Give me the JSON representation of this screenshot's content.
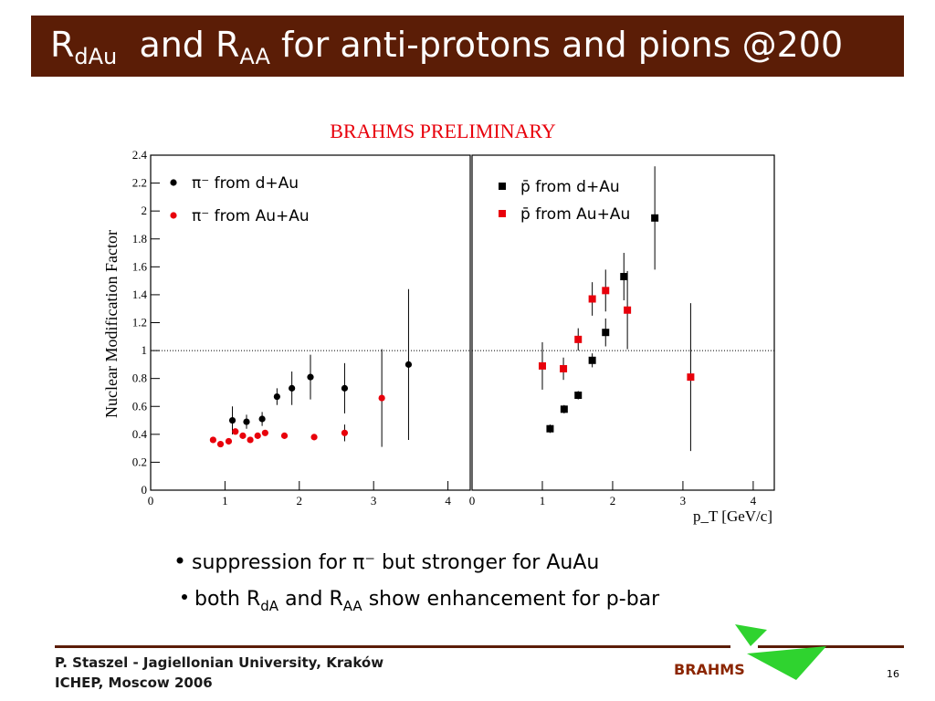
{
  "header": {
    "title": [
      "R",
      "dAu",
      "  and R",
      "AA",
      " for anti-protons and pions @200"
    ]
  },
  "annotation": "BRAHMS PRELIMINARY",
  "chart_data": [
    {
      "type": "scatter",
      "ylabel": "Nuclear Modification Factor",
      "xlim": [
        0,
        4.3
      ],
      "ylim": [
        0,
        2.4
      ],
      "xticks": [
        0,
        1,
        2,
        3,
        4
      ],
      "yticks": [
        0,
        0.2,
        0.4,
        0.6,
        0.8,
        1,
        1.2,
        1.4,
        1.6,
        1.8,
        2,
        2.2,
        2.4
      ],
      "hline": 1,
      "grid": false,
      "series": [
        {
          "name": "π⁻ from d+Au",
          "color": "#000000",
          "marker": "circle",
          "x": [
            1.1,
            1.29,
            1.5,
            1.7,
            1.9,
            2.15,
            2.61,
            3.47
          ],
          "values": [
            0.5,
            0.49,
            0.51,
            0.67,
            0.73,
            0.81,
            0.73,
            0.9
          ],
          "errors": [
            0.1,
            0.05,
            0.05,
            0.06,
            0.12,
            0.16,
            0.18,
            0.54
          ]
        },
        {
          "name": "π⁻ from Au+Au",
          "color": "#e8000b",
          "marker": "circle",
          "x": [
            0.84,
            0.94,
            1.05,
            1.14,
            1.24,
            1.34,
            1.44,
            1.54,
            1.8,
            2.2,
            2.61,
            3.11
          ],
          "values": [
            0.36,
            0.33,
            0.35,
            0.42,
            0.39,
            0.36,
            0.39,
            0.41,
            0.39,
            0.38,
            0.41,
            0.66
          ],
          "errors": [
            0.02,
            0.02,
            0.02,
            0.02,
            0.02,
            0.02,
            0.02,
            0.02,
            0.02,
            0.02,
            0.06,
            0.35
          ]
        }
      ]
    },
    {
      "type": "scatter",
      "xlabel": "p_T [GeV/c]",
      "xlim": [
        0,
        4.3
      ],
      "ylim": [
        0,
        2.4
      ],
      "xticks": [
        0,
        1,
        2,
        3,
        4
      ],
      "hline": 1,
      "grid": false,
      "series": [
        {
          "name": "p̄ from d+Au",
          "color": "#000000",
          "marker": "square",
          "x": [
            1.11,
            1.31,
            1.51,
            1.71,
            1.9,
            2.16,
            2.6
          ],
          "values": [
            0.44,
            0.58,
            0.68,
            0.93,
            1.13,
            1.53,
            1.95
          ],
          "errors": [
            0.03,
            0.03,
            0.03,
            0.05,
            0.1,
            0.17,
            0.37
          ]
        },
        {
          "name": "p̄ from Au+Au",
          "color": "#e8000b",
          "marker": "square",
          "x": [
            1.0,
            1.3,
            1.51,
            1.71,
            1.9,
            2.21,
            3.11
          ],
          "values": [
            0.89,
            0.87,
            1.08,
            1.37,
            1.43,
            1.29,
            0.81
          ],
          "errors": [
            0.17,
            0.08,
            0.08,
            0.12,
            0.15,
            0.28,
            0.53
          ]
        }
      ]
    }
  ],
  "bullets": [
    "suppression for π⁻ but stronger for AuAu",
    [
      "both R",
      "dA",
      " and R",
      "AA",
      " show enhancement for p-bar"
    ]
  ],
  "footer": {
    "author": "P. Staszel - Jagiellonian University, Kraków",
    "event": "ICHEP, Moscow 2006",
    "logo": "BRAHMS",
    "page": "16"
  }
}
